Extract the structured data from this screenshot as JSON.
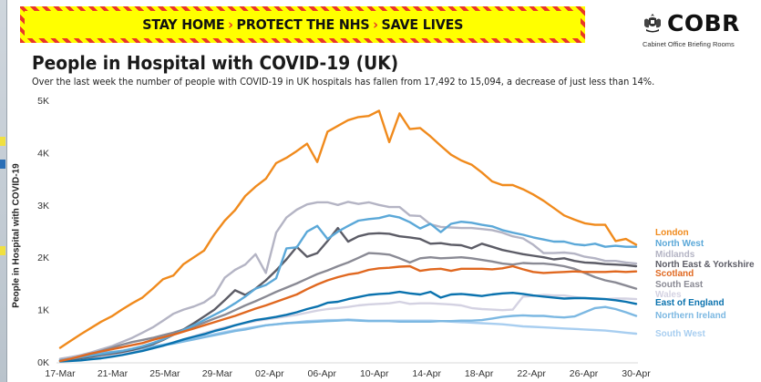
{
  "banner": {
    "parts": [
      "STAY HOME",
      "PROTECT THE NHS",
      "SAVE LIVES"
    ],
    "separator": "›",
    "colors": {
      "background": "#ffff00",
      "stripe": "#e8362a",
      "text": "#111111"
    }
  },
  "logo": {
    "word": "COBR",
    "subtitle": "Cabinet Office Briefing Rooms",
    "icon": "royal-crest-icon"
  },
  "header": {
    "title": "People in Hospital with COVID-19 (UK)",
    "subtitle": "Over the last week the number of people with COVID-19 in UK hospitals has fallen from 17,492 to 15,094, a decrease of just less than 14%."
  },
  "chart_data": {
    "type": "line",
    "title": "People in Hospital with COVID-19 (UK)",
    "xlabel": "",
    "ylabel": "People in Hospital with COVID-19",
    "ylim": [
      0,
      5000
    ],
    "yticks": [
      "0K",
      "1K",
      "2K",
      "3K",
      "4K",
      "5K"
    ],
    "ytick_values": [
      0,
      1000,
      2000,
      3000,
      4000,
      5000
    ],
    "xticks": [
      "17-Mar",
      "21-Mar",
      "25-Mar",
      "29-Mar",
      "02-Apr",
      "06-Apr",
      "10-Apr",
      "14-Apr",
      "18-Apr",
      "22-Apr",
      "26-Apr",
      "30-Apr"
    ],
    "x_start": "17-Mar",
    "x_end": "30-Apr",
    "grid": false,
    "legend": "right, labels at line ends",
    "series": [
      {
        "name": "London",
        "color": "#f08a1c",
        "start_index": 0,
        "values": [
          270,
          400,
          530,
          650,
          770,
          870,
          1000,
          1120,
          1230,
          1400,
          1580,
          1650,
          1870,
          2000,
          2130,
          2440,
          2700,
          2900,
          3170,
          3350,
          3500,
          3800,
          3900,
          4030,
          4170,
          3820,
          4400,
          4510,
          4620,
          4680,
          4700,
          4800,
          4200,
          4750,
          4450,
          4470,
          4310,
          4130,
          3960,
          3850,
          3770,
          3620,
          3450,
          3380,
          3380,
          3300,
          3200,
          3080,
          2940,
          2800,
          2720,
          2650,
          2620,
          2620,
          2310,
          2350,
          2240
        ]
      },
      {
        "name": "North West",
        "color": "#5ba8d8",
        "start_index": 0,
        "values": [
          30,
          60,
          90,
          120,
          150,
          180,
          210,
          250,
          300,
          360,
          430,
          520,
          610,
          700,
          800,
          900,
          1000,
          1120,
          1250,
          1400,
          1470,
          1600,
          2170,
          2190,
          2490,
          2600,
          2350,
          2490,
          2600,
          2700,
          2730,
          2750,
          2800,
          2760,
          2670,
          2550,
          2640,
          2480,
          2640,
          2680,
          2660,
          2620,
          2590,
          2520,
          2470,
          2430,
          2380,
          2340,
          2300,
          2300,
          2250,
          2230,
          2260,
          2200,
          2220,
          2200,
          2200
        ]
      },
      {
        "name": "Midlands",
        "color": "#b4b4c4",
        "start_index": 0,
        "values": [
          60,
          90,
          130,
          180,
          240,
          300,
          380,
          460,
          560,
          660,
          790,
          920,
          1000,
          1060,
          1140,
          1280,
          1610,
          1760,
          1860,
          2060,
          1700,
          2470,
          2760,
          2910,
          3010,
          3050,
          3050,
          3000,
          3060,
          3020,
          3050,
          3000,
          2960,
          2960,
          2800,
          2790,
          2630,
          2580,
          2570,
          2560,
          2560,
          2540,
          2520,
          2470,
          2400,
          2360,
          2240,
          2080,
          2080,
          2090,
          2070,
          2010,
          1980,
          1930,
          1930,
          1900,
          1880
        ]
      },
      {
        "name": "North East & Yorkshire",
        "color": "#5c5c66",
        "start_index": 0,
        "values": [
          20,
          40,
          70,
          100,
          130,
          160,
          190,
          230,
          280,
          340,
          420,
          520,
          620,
          740,
          870,
          1000,
          1180,
          1370,
          1280,
          1400,
          1560,
          1750,
          1960,
          2200,
          2010,
          2080,
          2310,
          2560,
          2300,
          2400,
          2450,
          2460,
          2450,
          2400,
          2380,
          2350,
          2260,
          2270,
          2240,
          2230,
          2170,
          2260,
          2200,
          2140,
          2100,
          2060,
          2030,
          2000,
          1960,
          1980,
          1930,
          1900,
          1890,
          1870,
          1860,
          1850,
          1830
        ]
      },
      {
        "name": "Scotland",
        "color": "#e06820",
        "start_index": 0,
        "values": [
          20,
          60,
          110,
          160,
          200,
          240,
          280,
          320,
          360,
          420,
          470,
          520,
          580,
          640,
          700,
          760,
          820,
          880,
          950,
          1020,
          1080,
          1150,
          1220,
          1290,
          1390,
          1480,
          1560,
          1620,
          1670,
          1700,
          1760,
          1790,
          1800,
          1820,
          1830,
          1740,
          1770,
          1780,
          1740,
          1780,
          1780,
          1780,
          1770,
          1790,
          1830,
          1770,
          1720,
          1700,
          1710,
          1720,
          1730,
          1720,
          1720,
          1720,
          1730,
          1720,
          1730
        ]
      },
      {
        "name": "South East",
        "color": "#8a8a94",
        "start_index": 0,
        "values": [
          30,
          60,
          100,
          150,
          210,
          270,
          330,
          380,
          420,
          460,
          510,
          560,
          620,
          680,
          750,
          830,
          900,
          990,
          1080,
          1160,
          1250,
          1340,
          1420,
          1500,
          1590,
          1680,
          1750,
          1830,
          1900,
          1990,
          2080,
          2070,
          2050,
          1980,
          1900,
          1980,
          2000,
          1980,
          1990,
          2000,
          1980,
          1950,
          1920,
          1880,
          1860,
          1890,
          1880,
          1880,
          1860,
          1830,
          1780,
          1700,
          1620,
          1560,
          1520,
          1460,
          1400
        ]
      },
      {
        "name": "Wales",
        "color": "#d4d2e2",
        "start_index": 0,
        "values": [
          20,
          40,
          60,
          80,
          100,
          130,
          160,
          190,
          230,
          270,
          320,
          370,
          430,
          490,
          550,
          610,
          660,
          700,
          740,
          780,
          810,
          840,
          870,
          900,
          940,
          980,
          1010,
          1030,
          1050,
          1080,
          1100,
          1110,
          1120,
          1150,
          1110,
          1120,
          1120,
          1110,
          1100,
          1080,
          1030,
          1010,
          1000,
          990,
          1000,
          1250,
          1260,
          1280,
          1270,
          1270,
          1240,
          1220,
          1200,
          1200,
          1210,
          1210,
          1200
        ]
      },
      {
        "name": "East of England",
        "color": "#0a72ae",
        "start_index": 0,
        "values": [
          10,
          20,
          30,
          50,
          70,
          100,
          130,
          170,
          210,
          260,
          310,
          370,
          430,
          480,
          530,
          590,
          640,
          700,
          750,
          800,
          830,
          860,
          900,
          950,
          1010,
          1060,
          1130,
          1150,
          1200,
          1240,
          1280,
          1300,
          1310,
          1340,
          1310,
          1290,
          1340,
          1230,
          1290,
          1300,
          1280,
          1260,
          1290,
          1310,
          1320,
          1300,
          1270,
          1250,
          1230,
          1210,
          1220,
          1220,
          1210,
          1200,
          1180,
          1150,
          1110
        ]
      },
      {
        "name": "Northern Ireland",
        "color": "#7cb8e2",
        "start_index": 0,
        "values": [
          50,
          90,
          120,
          150,
          170,
          190,
          210,
          230,
          260,
          290,
          320,
          350,
          390,
          430,
          470,
          510,
          550,
          590,
          620,
          660,
          700,
          720,
          740,
          750,
          760,
          770,
          780,
          790,
          800,
          790,
          780,
          780,
          780,
          770,
          770,
          770,
          770,
          780,
          780,
          790,
          790,
          800,
          830,
          860,
          880,
          890,
          880,
          880,
          860,
          850,
          870,
          950,
          1030,
          1050,
          1010,
          950,
          880
        ]
      },
      {
        "name": "South West",
        "color": "#a8cef0",
        "start_index": 0,
        "values": [
          30,
          60,
          90,
          120,
          150,
          180,
          210,
          240,
          270,
          300,
          330,
          370,
          410,
          450,
          490,
          530,
          570,
          610,
          640,
          670,
          700,
          720,
          740,
          760,
          780,
          790,
          800,
          800,
          810,
          800,
          790,
          790,
          790,
          790,
          790,
          790,
          790,
          780,
          770,
          760,
          750,
          740,
          730,
          720,
          700,
          680,
          670,
          660,
          650,
          640,
          630,
          620,
          610,
          600,
          580,
          560,
          540
        ]
      }
    ]
  }
}
